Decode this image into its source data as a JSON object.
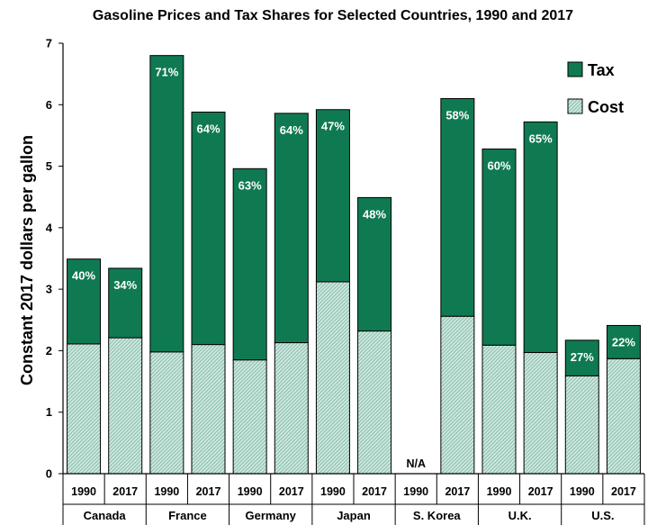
{
  "chart_data": {
    "type": "bar",
    "stacked": true,
    "title": "Gasoline Prices and Tax Shares for Selected Countries, 1990 and 2017",
    "ylabel": "Constant  2017 dollars per gallon",
    "xlabel": "",
    "ylim": [
      0,
      7
    ],
    "yticks": [
      "0",
      "1",
      "2",
      "3",
      "4",
      "5",
      "6",
      "7"
    ],
    "legend": {
      "position": "top-right",
      "entries": [
        {
          "name": "Tax",
          "color": "#0f7a52"
        },
        {
          "name": "Cost",
          "color": "#bfe0d6"
        }
      ]
    },
    "groups": [
      {
        "country": "Canada",
        "bars": [
          {
            "year": "1990",
            "cost": 2.11,
            "total": 3.49,
            "tax_share": "40%"
          },
          {
            "year": "2017",
            "cost": 2.21,
            "total": 3.34,
            "tax_share": "34%"
          }
        ]
      },
      {
        "country": "France",
        "bars": [
          {
            "year": "1990",
            "cost": 1.98,
            "total": 6.8,
            "tax_share": "71%"
          },
          {
            "year": "2017",
            "cost": 2.1,
            "total": 5.88,
            "tax_share": "64%"
          }
        ]
      },
      {
        "country": "Germany",
        "bars": [
          {
            "year": "1990",
            "cost": 1.85,
            "total": 4.96,
            "tax_share": "63%"
          },
          {
            "year": "2017",
            "cost": 2.13,
            "total": 5.86,
            "tax_share": "64%"
          }
        ]
      },
      {
        "country": "Japan",
        "bars": [
          {
            "year": "1990",
            "cost": 3.12,
            "total": 5.92,
            "tax_share": "47%"
          },
          {
            "year": "2017",
            "cost": 2.32,
            "total": 4.49,
            "tax_share": "48%"
          }
        ]
      },
      {
        "country": "S. Korea",
        "bars": [
          {
            "year": "1990",
            "cost": null,
            "total": null,
            "tax_share": null,
            "note": "N/A"
          },
          {
            "year": "2017",
            "cost": 2.56,
            "total": 6.1,
            "tax_share": "58%"
          }
        ]
      },
      {
        "country": "U.K.",
        "bars": [
          {
            "year": "1990",
            "cost": 2.09,
            "total": 5.28,
            "tax_share": "60%"
          },
          {
            "year": "2017",
            "cost": 1.97,
            "total": 5.72,
            "tax_share": "65%"
          }
        ]
      },
      {
        "country": "U.S.",
        "bars": [
          {
            "year": "1990",
            "cost": 1.59,
            "total": 2.17,
            "tax_share": "27%"
          },
          {
            "year": "2017",
            "cost": 1.87,
            "total": 2.41,
            "tax_share": "22%"
          }
        ]
      }
    ]
  }
}
